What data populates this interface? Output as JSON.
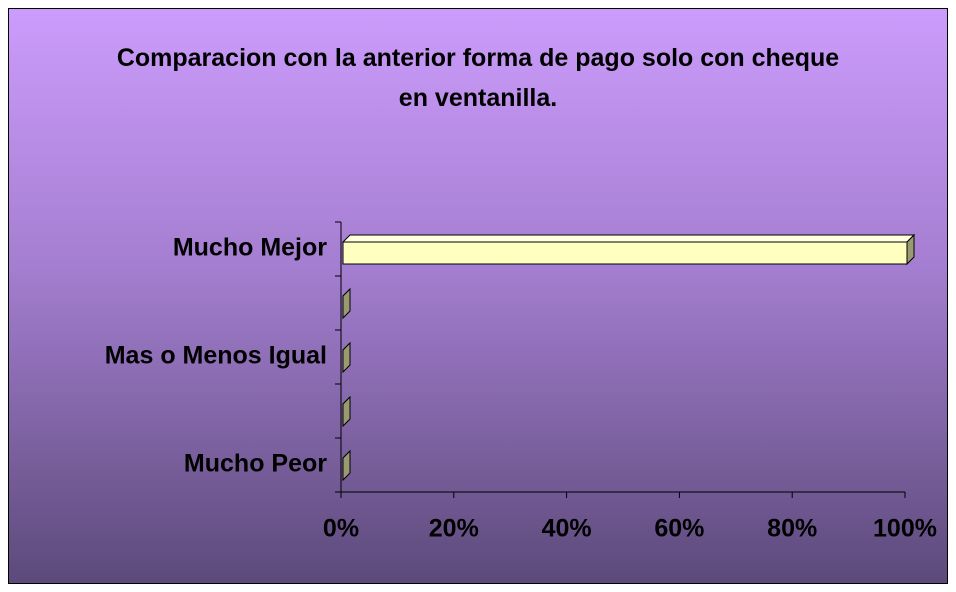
{
  "chart_data": {
    "type": "bar",
    "orientation": "horizontal",
    "title": "Comparacion con la anterior forma de pago solo con cheque en ventanilla.",
    "categories": [
      "Mucho Mejor",
      null,
      "Mas o Menos Igual",
      null,
      "Mucho Peor"
    ],
    "values": [
      100,
      0,
      0,
      0,
      0
    ],
    "color": "#ffffc0",
    "xlim": [
      0,
      100
    ],
    "xticks": [
      {
        "value": 0,
        "label": "0%"
      },
      {
        "value": 20,
        "label": "20%"
      },
      {
        "value": 40,
        "label": "40%"
      },
      {
        "value": 60,
        "label": "60%"
      },
      {
        "value": 80,
        "label": "80%"
      },
      {
        "value": 100,
        "label": "100%"
      }
    ],
    "grid": false
  }
}
